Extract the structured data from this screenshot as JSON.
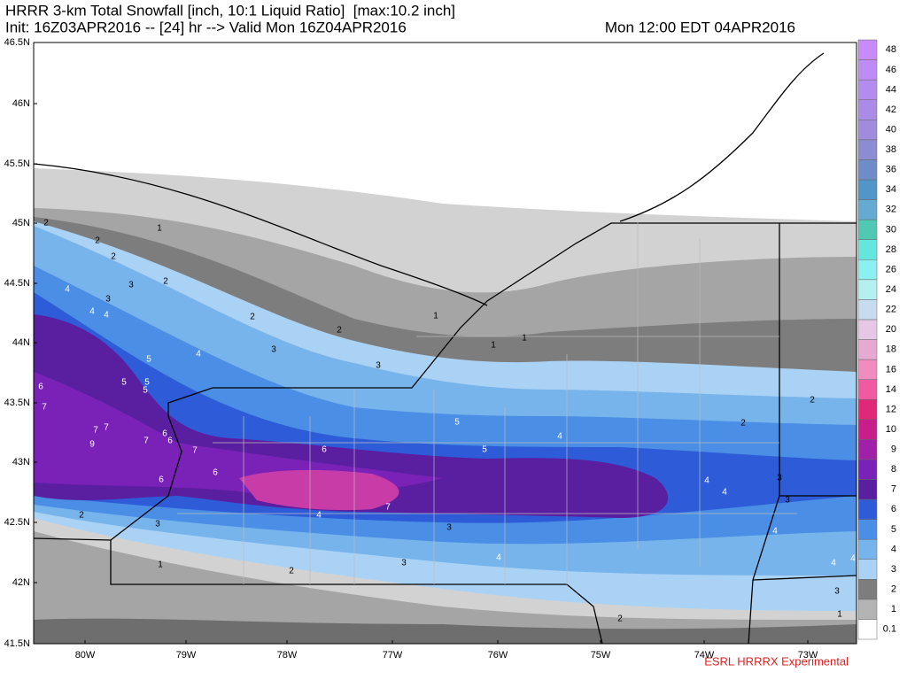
{
  "header": {
    "title": "HRRR 3-km Total Snowfall [inch, 10:1 Liquid Ratio]  [max:10.2 inch]",
    "init": "Init: 16Z03APR2016 -- [24] hr --> Valid Mon 16Z04APR2016",
    "valid_local": "Mon 12:00 EDT 04APR2016"
  },
  "latitude_labels": [
    "46.5N",
    "46N",
    "45.5N",
    "45N",
    "44.5N",
    "44N",
    "43.5N",
    "43N",
    "42.5N",
    "42N",
    "41.5N"
  ],
  "longitude_labels": [
    "80W",
    "79W",
    "78W",
    "77W",
    "76W",
    "75W",
    "74W",
    "73W"
  ],
  "colorbar": {
    "labels": [
      "0.1",
      "1",
      "2",
      "3",
      "4",
      "5",
      "6",
      "7",
      "8",
      "9",
      "10",
      "12",
      "14",
      "16",
      "18",
      "20",
      "22",
      "24",
      "26",
      "28",
      "30",
      "32",
      "34",
      "36",
      "38",
      "40",
      "42",
      "44",
      "46",
      "48"
    ],
    "colors": [
      "#ffffff",
      "#b4b4b4",
      "#7d7d7d",
      "#aad2f5",
      "#78b4ec",
      "#4a8ee6",
      "#2e5cd8",
      "#5a1ea0",
      "#7a22b8",
      "#a020a8",
      "#c81e8c",
      "#e02878",
      "#f05aa0",
      "#f08cbe",
      "#e6aad2",
      "#e6c8e6",
      "#c8dcf0",
      "#b4f0f0",
      "#8cf0f0",
      "#64e6dc",
      "#50c8b4",
      "#64aad2",
      "#5096c8",
      "#6e8cc8",
      "#8c8cd2",
      "#a08cdc",
      "#aa8ce6",
      "#b48cf0",
      "#be8cf5",
      "#c88cfa"
    ]
  },
  "contour_labels": [
    2,
    1,
    2,
    2,
    2,
    3,
    3,
    4,
    4,
    4,
    2,
    2,
    1,
    1,
    1,
    3,
    3,
    4,
    5,
    5,
    5,
    5,
    6,
    7,
    7,
    7,
    9,
    7,
    6,
    6,
    7,
    6,
    6,
    6,
    7,
    5,
    5,
    4,
    4,
    3,
    2,
    1,
    2,
    3,
    3,
    4,
    4,
    4,
    2,
    3,
    3,
    4,
    4,
    4,
    3,
    1,
    2,
    2
  ],
  "footer": "ESRL HRRRX Experimental"
}
